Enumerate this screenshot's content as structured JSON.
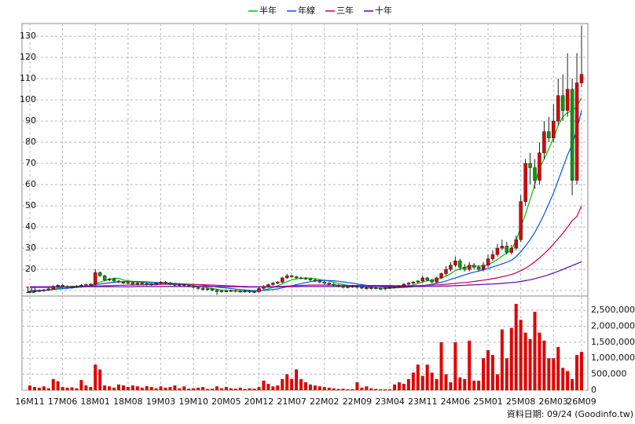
{
  "chart_data": {
    "type": "candlestick",
    "categories": [
      "16M11",
      null,
      null,
      null,
      null,
      null,
      null,
      "17M06",
      null,
      null,
      null,
      null,
      null,
      null,
      "18M01",
      null,
      null,
      null,
      null,
      null,
      null,
      "18M08",
      null,
      null,
      null,
      null,
      null,
      null,
      "19M03",
      null,
      null,
      null,
      null,
      null,
      null,
      "19M10",
      null,
      null,
      null,
      null,
      null,
      null,
      "20M05",
      null,
      null,
      null,
      null,
      null,
      null,
      "20M12",
      null,
      null,
      null,
      null,
      null,
      null,
      "21M07",
      null,
      null,
      null,
      null,
      null,
      null,
      "22M02",
      null,
      null,
      null,
      null,
      null,
      null,
      "22M09",
      null,
      null,
      null,
      null,
      null,
      null,
      "23M04",
      null,
      null,
      null,
      null,
      null,
      null,
      "23M11",
      null,
      null,
      null,
      null,
      null,
      null,
      "24M06",
      null,
      null,
      null,
      null,
      null,
      null,
      "25M01",
      null,
      null,
      null,
      null,
      null,
      null,
      "25M08",
      null,
      null,
      null,
      null,
      null,
      null,
      "26M03",
      null,
      null,
      null,
      null,
      null,
      "26M09"
    ],
    "open": [
      9.3,
      9.5,
      9.8,
      10,
      10.3,
      10.8,
      12,
      12.5,
      12,
      11.5,
      11.8,
      12,
      12.5,
      12.8,
      13,
      18.5,
      17,
      15,
      15.5,
      14.5,
      14,
      13.5,
      13.8,
      13,
      13.5,
      13.2,
      12.8,
      13,
      13.5,
      14,
      13.6,
      13,
      12.5,
      12.8,
      12.4,
      12,
      11.5,
      11,
      10.5,
      10.8,
      10.2,
      9.5,
      9.8,
      9.8,
      10,
      9.7,
      9.5,
      9.8,
      9.3,
      9.5,
      11,
      12,
      12.8,
      13.5,
      14,
      16,
      17,
      16.5,
      16,
      15.8,
      15.5,
      15,
      14.5,
      14,
      13.5,
      13,
      12.5,
      12,
      11.5,
      11.8,
      12,
      11.5,
      11.2,
      11,
      11.3,
      11,
      10.8,
      11.2,
      11.5,
      11.8,
      12,
      13,
      13.5,
      14,
      14.5,
      16,
      15,
      14,
      16,
      18,
      20,
      22,
      24,
      21,
      20,
      22,
      21,
      20,
      22,
      25,
      27,
      30,
      31,
      28,
      30,
      34,
      52,
      70,
      68,
      62,
      75,
      85,
      82,
      90,
      102,
      95,
      105,
      62,
      108
    ],
    "high": [
      10,
      10.3,
      10.5,
      10.8,
      11.3,
      12.5,
      13,
      13,
      12.5,
      12.3,
      12.5,
      13,
      13.3,
      13.5,
      20,
      19,
      17.5,
      16,
      16,
      15,
      14.5,
      14.3,
      14.3,
      14,
      14,
      13.7,
      13.5,
      14,
      14.5,
      14.5,
      14.1,
      13.5,
      13.3,
      13.3,
      12.9,
      12.5,
      12,
      11.5,
      11.3,
      11.3,
      10.7,
      10.3,
      10.3,
      10.5,
      10.5,
      10.2,
      10.3,
      10.3,
      10,
      11.5,
      12.5,
      13.3,
      14,
      14.5,
      16.5,
      18,
      17.5,
      17,
      16.5,
      16.3,
      16,
      15.5,
      15,
      14.5,
      14,
      13.5,
      13,
      12.5,
      12.3,
      12.5,
      12.5,
      12,
      11.7,
      11.8,
      11.8,
      11.5,
      11.7,
      12,
      12.3,
      12.5,
      13.5,
      14,
      14.5,
      15,
      17,
      16.5,
      15.5,
      16.5,
      18.5,
      21.5,
      23.5,
      26,
      25,
      22.5,
      23.5,
      23,
      22,
      23.5,
      27,
      29,
      32,
      34,
      33,
      31.5,
      36,
      55,
      72,
      75,
      72,
      80,
      90,
      92,
      98,
      110,
      112,
      122,
      110,
      122,
      135
    ],
    "low": [
      8.8,
      9,
      9.3,
      9.5,
      9.8,
      10.3,
      11.5,
      11.5,
      11,
      11,
      11.3,
      11.5,
      12,
      12.3,
      12.5,
      16.5,
      14.5,
      14.5,
      14,
      13.5,
      13,
      13,
      12.5,
      12.5,
      12.7,
      12.3,
      12.3,
      12.5,
      13,
      13.1,
      12.5,
      12,
      12,
      11.9,
      11.5,
      11,
      10.5,
      10,
      10,
      9.7,
      8,
      9,
      9.3,
      9.3,
      9.2,
      9,
      9,
      8.8,
      8.8,
      9,
      10.5,
      11.5,
      12.3,
      13,
      13.5,
      15.5,
      16,
      15.5,
      15.3,
      15,
      14.5,
      14,
      13.5,
      13,
      12.5,
      12,
      11.5,
      11,
      11,
      11.3,
      11,
      10.7,
      10.5,
      10.5,
      10.5,
      10.3,
      10.3,
      10.7,
      11,
      11.3,
      11.5,
      12.5,
      13,
      13.5,
      14,
      14.5,
      13.5,
      13.5,
      15.5,
      17,
      19,
      21,
      19.5,
      19,
      19,
      20,
      19,
      19,
      21,
      24,
      26,
      29,
      27,
      27,
      29,
      33,
      50,
      60,
      58,
      60,
      72,
      80,
      80,
      88,
      90,
      92,
      55,
      60,
      106
    ],
    "close": [
      9.5,
      9.8,
      10,
      10.3,
      10.8,
      12,
      12.5,
      12,
      11.5,
      11.8,
      12,
      12.5,
      12.8,
      13,
      18.5,
      17,
      15,
      15.5,
      14.5,
      14,
      13.5,
      13.8,
      13,
      13.5,
      13.2,
      12.8,
      13,
      13.5,
      14,
      13.6,
      13,
      12.5,
      12.8,
      12.4,
      12,
      11.5,
      11,
      10.5,
      10.8,
      10.2,
      9.5,
      9.8,
      9.8,
      10,
      9.7,
      9.5,
      9.8,
      9.3,
      9.5,
      11,
      12,
      12.8,
      13.5,
      14,
      16,
      17,
      16.5,
      16,
      15.8,
      15.5,
      15,
      14.5,
      14,
      13.5,
      13,
      12.5,
      12,
      11.5,
      11.8,
      12,
      11.5,
      11.2,
      11,
      11.3,
      11,
      10.8,
      11.2,
      11.5,
      11.8,
      12,
      13,
      13.5,
      14,
      14.5,
      16,
      15,
      14,
      16,
      18,
      20,
      22,
      24,
      21,
      20,
      22,
      21,
      20,
      22,
      25,
      27,
      30,
      31,
      28,
      30,
      34,
      52,
      70,
      68,
      62,
      75,
      85,
      82,
      90,
      102,
      95,
      105,
      62,
      108,
      112
    ],
    "up_color": "#e00000",
    "down_color": "#00a000",
    "wick_color": "#202020",
    "ylim": [
      7.8,
      136
    ],
    "yticks": [
      10,
      20,
      30,
      40,
      50,
      60,
      70,
      80,
      90,
      100,
      110,
      120,
      130
    ],
    "grid": true,
    "series": [
      {
        "name": "半年",
        "color": "#00c000",
        "values": [
          9.5,
          9.6,
          9.8,
          10,
          10.3,
          10.7,
          11.1,
          11.5,
          11.8,
          12,
          12.1,
          12.1,
          12.1,
          12.3,
          13.2,
          14,
          14.6,
          15.3,
          15.8,
          15.8,
          15,
          14.6,
          14.3,
          14,
          13.8,
          13.6,
          13.4,
          13.3,
          13.4,
          13.5,
          13.5,
          13.4,
          13.2,
          13,
          12.7,
          12.4,
          12,
          11.6,
          11.3,
          11,
          10.6,
          10.3,
          10.1,
          10,
          9.9,
          9.8,
          9.7,
          9.6,
          9.6,
          9.8,
          10.3,
          10.8,
          11.5,
          12.3,
          13.2,
          14.2,
          15,
          15.5,
          15.8,
          15.9,
          15.9,
          15.6,
          15.2,
          14.8,
          14.4,
          13.9,
          13.4,
          12.9,
          12.5,
          12.2,
          12,
          11.8,
          11.5,
          11.4,
          11.3,
          11.2,
          11.1,
          11.1,
          11.2,
          11.4,
          11.8,
          12.2,
          12.7,
          13.3,
          14,
          14.6,
          14.9,
          15.3,
          15.8,
          16.8,
          18,
          19.5,
          20.2,
          21,
          21.6,
          21.6,
          21.5,
          21.6,
          22.3,
          23.3,
          24.7,
          26.3,
          27.7,
          29.4,
          33.5,
          40,
          46,
          53,
          60,
          68,
          72,
          77,
          82,
          88,
          92,
          94,
          95,
          97,
          101
        ]
      },
      {
        "name": "年線",
        "color": "#0050ff",
        "values": [
          10,
          10,
          10.1,
          10.2,
          10.3,
          10.5,
          10.7,
          10.9,
          11.1,
          11.3,
          11.5,
          11.7,
          11.9,
          12.3,
          12.7,
          13.1,
          13.4,
          13.7,
          13.9,
          14.1,
          14.2,
          14.3,
          14.3,
          14.3,
          14.2,
          14.1,
          14,
          13.8,
          13.6,
          13.5,
          13.4,
          13.3,
          13.2,
          13.1,
          13,
          12.9,
          12.7,
          12.5,
          12.2,
          12,
          11.7,
          11.4,
          11.2,
          11,
          10.7,
          10.5,
          10.3,
          10.1,
          10,
          10,
          10.1,
          10.3,
          10.5,
          10.8,
          11.3,
          11.8,
          12.3,
          12.8,
          13.3,
          13.8,
          14.2,
          14.5,
          14.7,
          14.8,
          14.7,
          14.6,
          14.4,
          14.1,
          13.8,
          13.5,
          13.1,
          12.8,
          12.5,
          12.2,
          12,
          11.8,
          11.6,
          11.5,
          11.4,
          11.4,
          11.5,
          11.6,
          11.8,
          12,
          12.3,
          12.6,
          13,
          13.4,
          13.9,
          14.5,
          15.3,
          16,
          16.7,
          17.4,
          18.1,
          18.7,
          19.2,
          19.8,
          20.4,
          21.1,
          21.8,
          22.6,
          23.4,
          24.3,
          26,
          28.3,
          31,
          34,
          37.5,
          41.5,
          46,
          51,
          56,
          62,
          68,
          74,
          79,
          86,
          95
        ]
      },
      {
        "name": "三年",
        "color": "#d00050",
        "values": [
          11.5,
          11.5,
          11.5,
          11.5,
          11.5,
          11.6,
          11.6,
          11.6,
          11.7,
          11.7,
          11.8,
          11.8,
          11.9,
          12,
          12.1,
          12.2,
          12.3,
          12.3,
          12.4,
          12.5,
          12.5,
          12.6,
          12.6,
          12.7,
          12.7,
          12.8,
          12.8,
          12.8,
          12.9,
          12.9,
          12.9,
          12.9,
          12.9,
          12.9,
          12.9,
          12.9,
          12.8,
          12.8,
          12.7,
          12.6,
          12.5,
          12.4,
          12.3,
          12.2,
          12.1,
          12,
          11.9,
          11.8,
          11.8,
          11.8,
          11.8,
          11.8,
          11.8,
          11.9,
          12,
          12.1,
          12.2,
          12.3,
          12.4,
          12.5,
          12.6,
          12.6,
          12.6,
          12.6,
          12.6,
          12.6,
          12.5,
          12.5,
          12.4,
          12.4,
          12.4,
          12.4,
          12.4,
          12.4,
          12.4,
          12.4,
          12.4,
          12.4,
          12.3,
          12.3,
          12.3,
          12.3,
          12.3,
          12.3,
          12.4,
          12.5,
          12.6,
          12.7,
          12.8,
          13,
          13.2,
          13.4,
          13.6,
          13.8,
          14,
          14.3,
          14.6,
          14.9,
          15.2,
          15.6,
          16,
          16.5,
          17,
          17.6,
          18.4,
          19.4,
          20.5,
          22,
          23.6,
          25.4,
          27.4,
          29.5,
          32,
          34.5,
          37,
          40,
          43,
          45,
          50
        ]
      },
      {
        "name": "十年",
        "color": "#6000c0",
        "values": [
          11.8,
          11.8,
          11.8,
          11.8,
          11.8,
          11.8,
          11.8,
          11.8,
          11.8,
          11.8,
          11.8,
          11.8,
          11.8,
          11.8,
          11.8,
          11.8,
          11.8,
          11.8,
          11.8,
          11.8,
          11.8,
          11.8,
          11.8,
          11.9,
          11.9,
          11.9,
          11.9,
          11.9,
          11.9,
          11.9,
          11.9,
          11.9,
          11.9,
          11.9,
          11.9,
          11.9,
          11.9,
          11.9,
          11.9,
          11.9,
          11.9,
          11.9,
          11.8,
          11.8,
          11.8,
          11.8,
          11.7,
          11.7,
          11.7,
          11.7,
          11.7,
          11.7,
          11.7,
          11.7,
          11.8,
          11.8,
          11.8,
          11.8,
          11.9,
          11.9,
          11.9,
          11.9,
          11.9,
          11.9,
          11.9,
          11.9,
          11.9,
          11.9,
          11.9,
          11.9,
          11.9,
          11.9,
          11.9,
          11.9,
          11.9,
          11.9,
          11.9,
          11.9,
          11.9,
          11.9,
          11.9,
          11.9,
          11.9,
          11.9,
          11.9,
          12,
          12,
          12,
          12.1,
          12.1,
          12.2,
          12.3,
          12.4,
          12.5,
          12.6,
          12.7,
          12.8,
          12.9,
          13,
          13.1,
          13.2,
          13.4,
          13.6,
          13.8,
          14,
          14.3,
          14.7,
          15.1,
          15.6,
          16.2,
          16.8,
          17.5,
          18.3,
          19.1,
          20,
          20.9,
          21.8,
          22.7,
          23.6
        ]
      }
    ],
    "volume": {
      "color": "#e00000",
      "values": [
        150000,
        100000,
        80000,
        120000,
        60000,
        350000,
        280000,
        100000,
        80000,
        90000,
        60000,
        320000,
        150000,
        100000,
        800000,
        650000,
        150000,
        120000,
        80000,
        180000,
        150000,
        100000,
        150000,
        120000,
        80000,
        130000,
        100000,
        60000,
        120000,
        80000,
        100000,
        150000,
        60000,
        120000,
        50000,
        60000,
        80000,
        100000,
        40000,
        50000,
        120000,
        60000,
        100000,
        60000,
        50000,
        80000,
        40000,
        60000,
        50000,
        100000,
        300000,
        200000,
        120000,
        150000,
        350000,
        500000,
        350000,
        650000,
        350000,
        250000,
        180000,
        150000,
        120000,
        100000,
        80000,
        60000,
        40000,
        50000,
        30000,
        30000,
        250000,
        80000,
        120000,
        60000,
        40000,
        30000,
        30000,
        30000,
        180000,
        250000,
        200000,
        350000,
        550000,
        800000,
        450000,
        800000,
        550000,
        350000,
        1500000,
        500000,
        250000,
        1500000,
        400000,
        350000,
        1550000,
        300000,
        300000,
        1000000,
        1250000,
        1100000,
        500000,
        1900000,
        1000000,
        1950000,
        2700000,
        2200000,
        1800000,
        1600000,
        2450000,
        1800000,
        1550000,
        1000000,
        1000000,
        1350000,
        700000,
        600000,
        350000,
        1100000,
        1200000
      ],
      "ylim": [
        0,
        2920000
      ],
      "yticks": [
        0,
        {
          "value": 500000,
          "label": "500,000"
        },
        {
          "value": 1000000,
          "label": "1,000,000"
        },
        {
          "value": 1500000,
          "label": "1,500,000"
        },
        {
          "value": 2000000,
          "label": "2,000,000"
        },
        {
          "value": 2500000,
          "label": "2,500,000"
        }
      ]
    },
    "source": "資料日期: 09/24 (Goodinfo.tw)"
  }
}
